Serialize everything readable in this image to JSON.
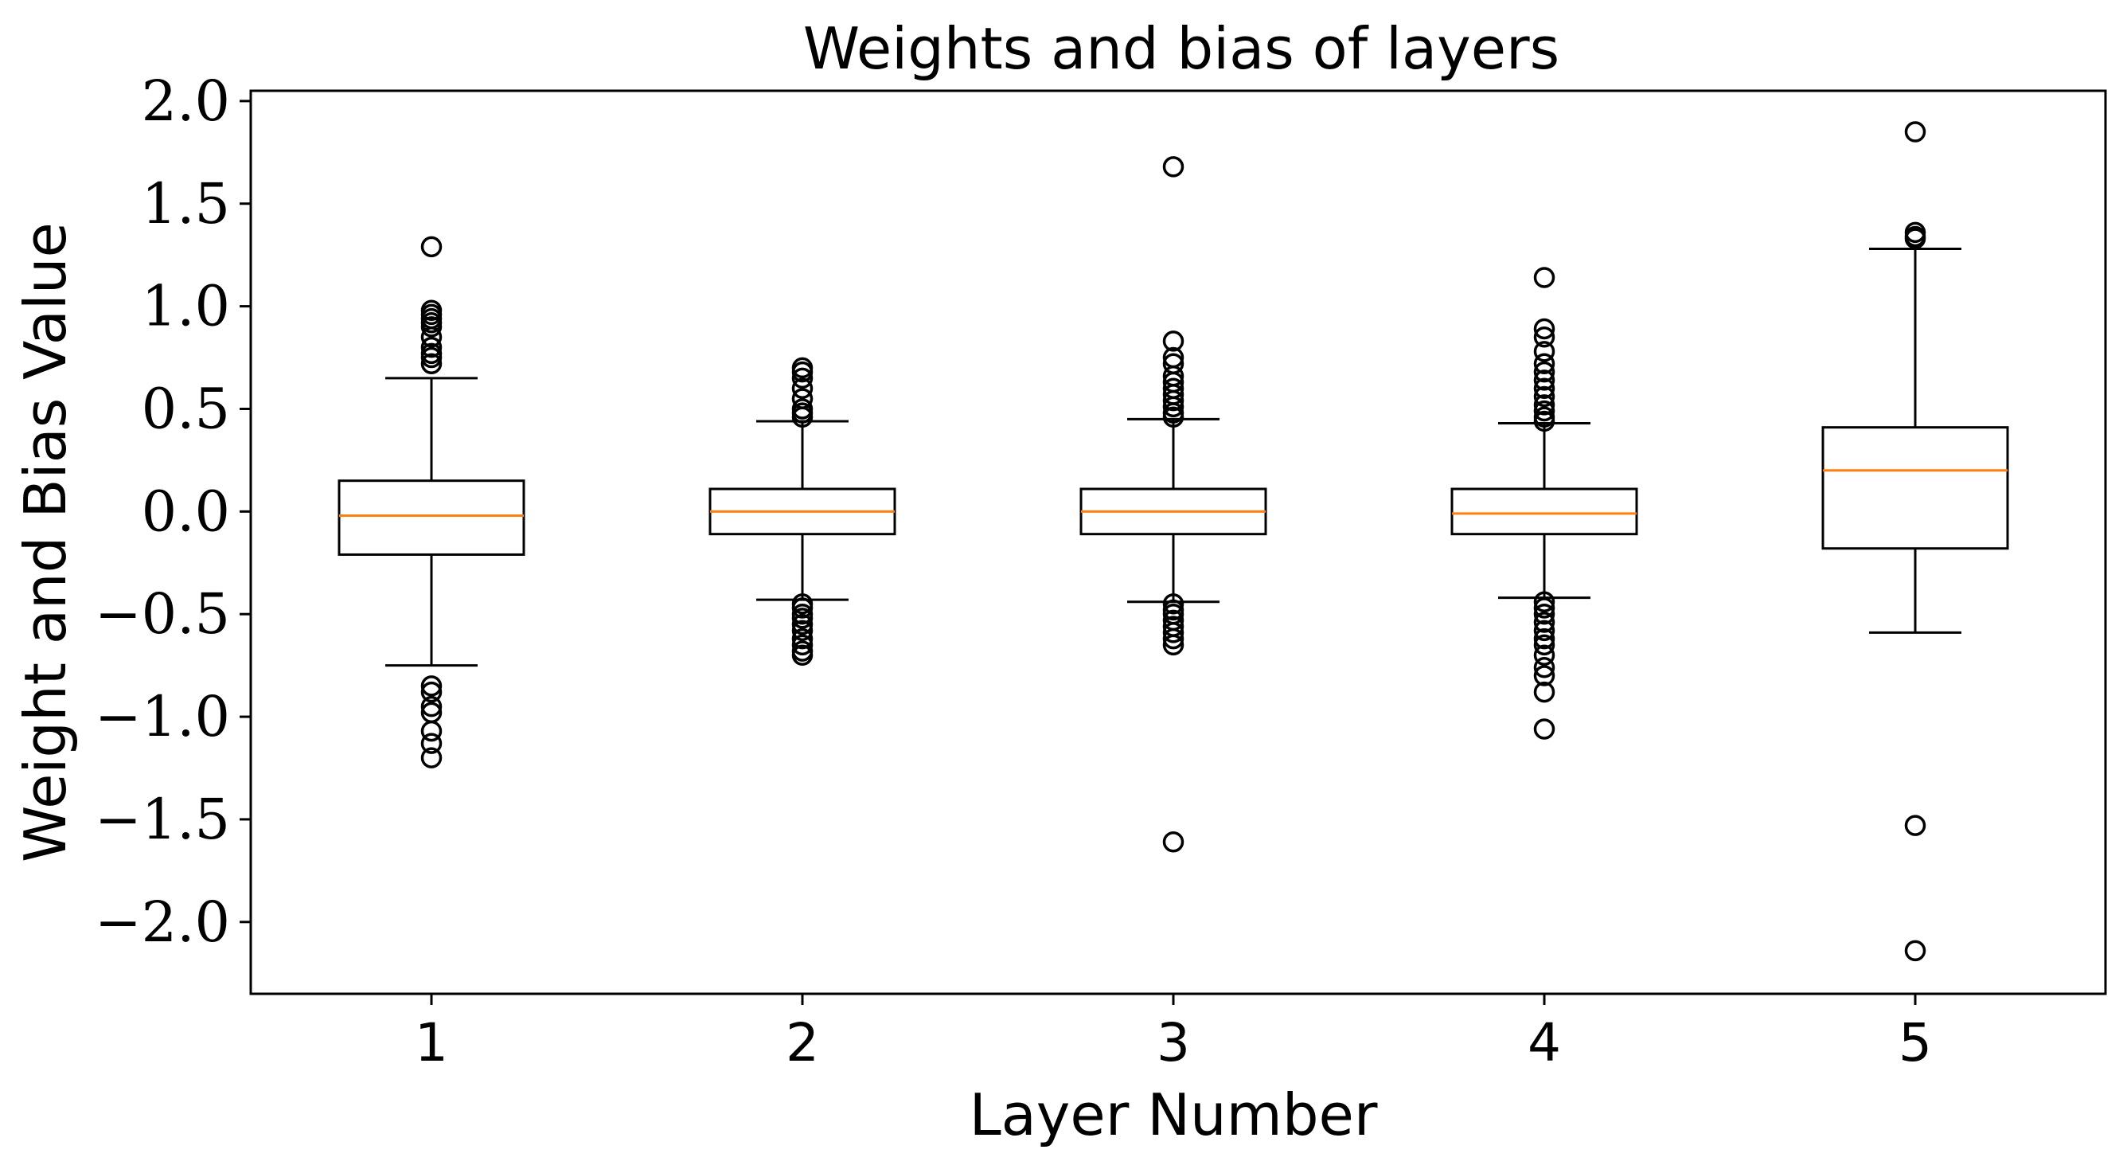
{
  "chart_data": {
    "type": "box",
    "title": "Weights and bias of layers",
    "xlabel": "Layer Number",
    "ylabel": "Weight and Bias Value",
    "categories": [
      "1",
      "2",
      "3",
      "4",
      "5"
    ],
    "ylim": [
      -2.35,
      2.05
    ],
    "yticks": [
      2.0,
      1.5,
      1.0,
      0.5,
      0.0,
      -0.5,
      -1.0,
      -1.5,
      -2.0
    ],
    "ytick_labels": [
      "2.0",
      "1.5",
      "1.0",
      "0.5",
      "0.0",
      "−0.5",
      "−1.0",
      "−1.5",
      "−2.0"
    ],
    "grid": false,
    "colors": {
      "box": "#000000",
      "median": "#ff7f0e"
    },
    "boxes": [
      {
        "name": "1",
        "whisker_low": -0.75,
        "q1": -0.21,
        "median": -0.02,
        "q3": 0.15,
        "whisker_high": 0.65,
        "outliers": [
          1.29,
          0.98,
          0.96,
          0.94,
          0.92,
          0.9,
          0.85,
          0.8,
          0.77,
          0.75,
          0.72,
          -0.85,
          -0.88,
          -0.95,
          -0.98,
          -1.07,
          -1.13,
          -1.2
        ]
      },
      {
        "name": "2",
        "whisker_low": -0.43,
        "q1": -0.11,
        "median": 0.0,
        "q3": 0.11,
        "whisker_high": 0.44,
        "outliers": [
          0.7,
          0.68,
          0.65,
          0.6,
          0.55,
          0.5,
          0.48,
          0.46,
          -0.45,
          -0.47,
          -0.5,
          -0.52,
          -0.55,
          -0.58,
          -0.62,
          -0.65,
          -0.68,
          -0.7
        ]
      },
      {
        "name": "3",
        "whisker_low": -0.44,
        "q1": -0.11,
        "median": 0.0,
        "q3": 0.11,
        "whisker_high": 0.45,
        "outliers": [
          1.68,
          0.83,
          0.75,
          0.72,
          0.66,
          0.63,
          0.6,
          0.57,
          0.54,
          0.51,
          0.48,
          0.46,
          -0.45,
          -0.48,
          -0.5,
          -0.53,
          -0.56,
          -0.59,
          -0.62,
          -0.65,
          -1.61
        ]
      },
      {
        "name": "4",
        "whisker_low": -0.42,
        "q1": -0.11,
        "median": -0.01,
        "q3": 0.11,
        "whisker_high": 0.43,
        "outliers": [
          1.14,
          0.89,
          0.85,
          0.78,
          0.72,
          0.68,
          0.64,
          0.6,
          0.56,
          0.52,
          0.49,
          0.46,
          0.44,
          -0.44,
          -0.47,
          -0.5,
          -0.54,
          -0.58,
          -0.62,
          -0.65,
          -0.7,
          -0.76,
          -0.8,
          -0.88,
          -1.06
        ]
      },
      {
        "name": "5",
        "whisker_low": -0.59,
        "q1": -0.18,
        "median": 0.2,
        "q3": 0.41,
        "whisker_high": 1.28,
        "outliers": [
          1.85,
          1.36,
          1.34,
          1.33,
          -1.53,
          -2.14
        ]
      }
    ]
  }
}
